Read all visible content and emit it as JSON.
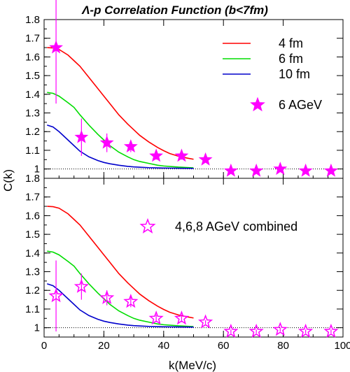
{
  "chart_data": {
    "title": "Λ-p Correlation Function (b<7fm)",
    "xlabel": "k(MeV/c)",
    "ylabel": "C(k)",
    "xlim": [
      0,
      100
    ],
    "ylim": [
      0.95,
      1.8
    ],
    "reference_line": 1,
    "grid": false,
    "x_ticks": [
      0,
      20,
      40,
      60,
      80,
      100
    ],
    "y_ticks": [
      1,
      1.1,
      1.2,
      1.3,
      1.4,
      1.5,
      1.6,
      1.7,
      1.8
    ],
    "colors": {
      "4fm": "#ff0000",
      "6fm": "#00dd00",
      "10fm": "#0000cc",
      "data": "#ff00ff"
    },
    "panels": [
      {
        "type": "line+scatter",
        "legend_position": "top-right",
        "series": [
          {
            "name": "4 fm",
            "kind": "line",
            "color": "#ff0000",
            "x": [
              1,
              3,
              5,
              8,
              10,
              12,
              15,
              18,
              20,
              22,
              25,
              28,
              30,
              32,
              35,
              38,
              40,
              42,
              45,
              48,
              50
            ],
            "y": [
              1.65,
              1.648,
              1.64,
              1.61,
              1.58,
              1.55,
              1.49,
              1.43,
              1.39,
              1.35,
              1.29,
              1.24,
              1.21,
              1.18,
              1.145,
              1.115,
              1.098,
              1.083,
              1.068,
              1.058,
              1.052
            ]
          },
          {
            "name": "6 fm",
            "kind": "line",
            "color": "#00dd00",
            "x": [
              1,
              3,
              5,
              8,
              10,
              12,
              15,
              18,
              20,
              22,
              25,
              28,
              30,
              32,
              35,
              38,
              40,
              45,
              50
            ],
            "y": [
              1.41,
              1.405,
              1.39,
              1.355,
              1.33,
              1.29,
              1.235,
              1.185,
              1.155,
              1.125,
              1.09,
              1.065,
              1.05,
              1.04,
              1.03,
              1.02,
              1.016,
              1.01,
              1.006
            ]
          },
          {
            "name": "10 fm",
            "kind": "line",
            "color": "#0000cc",
            "x": [
              1,
              3,
              5,
              8,
              10,
              12,
              15,
              18,
              20,
              22,
              25,
              28,
              30,
              35,
              40,
              45,
              50
            ],
            "y": [
              1.235,
              1.225,
              1.2,
              1.155,
              1.125,
              1.095,
              1.065,
              1.045,
              1.035,
              1.028,
              1.02,
              1.014,
              1.011,
              1.007,
              1.005,
              1.004,
              1.003
            ]
          },
          {
            "name": "6 AGeV",
            "kind": "points",
            "marker": "filled-star",
            "color": "#ff00ff",
            "x": [
              4,
              12.5,
              21,
              29,
              37.5,
              46,
              54,
              62.5,
              71,
              79,
              87.5,
              96
            ],
            "y": [
              1.65,
              1.17,
              1.14,
              1.12,
              1.07,
              1.07,
              1.05,
              0.99,
              0.99,
              1.0,
              0.99,
              0.99
            ],
            "errors": [
              0.3,
              0.1,
              0.05,
              0.03,
              0.02,
              0.02,
              0.01,
              0.01,
              0.01,
              0.01,
              0.01,
              0.01
            ]
          }
        ]
      },
      {
        "type": "line+scatter",
        "legend_position": "top-right",
        "series": [
          {
            "name": "4 fm",
            "kind": "line",
            "color": "#ff0000",
            "x": [
              1,
              3,
              5,
              8,
              10,
              12,
              15,
              18,
              20,
              22,
              25,
              28,
              30,
              32,
              35,
              38,
              40,
              42,
              45,
              48,
              50
            ],
            "y": [
              1.65,
              1.648,
              1.64,
              1.61,
              1.58,
              1.55,
              1.49,
              1.43,
              1.39,
              1.35,
              1.29,
              1.24,
              1.21,
              1.18,
              1.145,
              1.115,
              1.098,
              1.083,
              1.068,
              1.058,
              1.052
            ]
          },
          {
            "name": "6 fm",
            "kind": "line",
            "color": "#00dd00",
            "x": [
              1,
              3,
              5,
              8,
              10,
              12,
              15,
              18,
              20,
              22,
              25,
              28,
              30,
              32,
              35,
              38,
              40,
              45,
              50
            ],
            "y": [
              1.41,
              1.405,
              1.39,
              1.355,
              1.33,
              1.29,
              1.235,
              1.185,
              1.155,
              1.125,
              1.09,
              1.065,
              1.05,
              1.04,
              1.03,
              1.02,
              1.016,
              1.01,
              1.006
            ]
          },
          {
            "name": "10 fm",
            "kind": "line",
            "color": "#0000cc",
            "x": [
              1,
              3,
              5,
              8,
              10,
              12,
              15,
              18,
              20,
              22,
              25,
              28,
              30,
              35,
              40,
              45,
              50
            ],
            "y": [
              1.235,
              1.225,
              1.2,
              1.155,
              1.125,
              1.095,
              1.065,
              1.045,
              1.035,
              1.028,
              1.02,
              1.014,
              1.011,
              1.007,
              1.005,
              1.004,
              1.003
            ]
          },
          {
            "name": "4,6,8 AGeV combined",
            "kind": "points",
            "marker": "open-star",
            "color": "#ff00ff",
            "x": [
              4,
              12.5,
              21,
              29,
              37.5,
              46,
              54,
              62.5,
              71,
              79,
              87.5,
              96
            ],
            "y": [
              1.17,
              1.22,
              1.16,
              1.14,
              1.05,
              1.05,
              1.03,
              0.98,
              0.98,
              0.99,
              0.98,
              0.98
            ],
            "errors": [
              0.19,
              0.07,
              0.04,
              0.03,
              0.02,
              0.02,
              0.01,
              0.01,
              0.01,
              0.01,
              0.01,
              0.01
            ]
          }
        ],
        "legend_entries": [
          "4,6,8 AGeV combined"
        ]
      }
    ]
  }
}
